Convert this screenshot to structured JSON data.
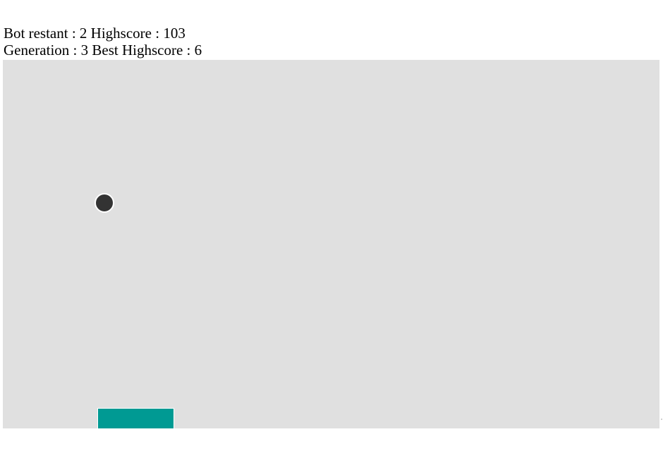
{
  "hud": {
    "line1": {
      "bot_restart_label": "Bot restant :",
      "bot_restart_value": "2",
      "highscore_label": "Highscore :",
      "highscore_value": "103"
    },
    "line2": {
      "generation_label": "Generation :",
      "generation_value": "3",
      "best_highscore_label": "Best Highscore :",
      "best_highscore_value": "6"
    }
  },
  "colors": {
    "arena_background": "#e0e0e0",
    "ball": "#333333",
    "paddle": "#009a93"
  }
}
